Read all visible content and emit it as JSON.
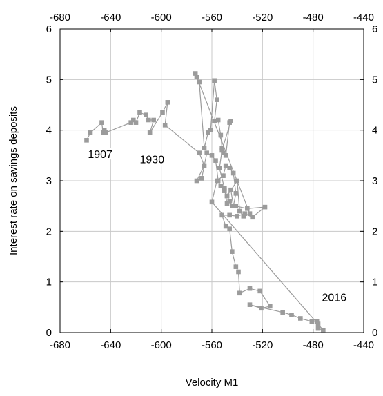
{
  "chart_data": {
    "type": "scatter",
    "title": "",
    "xlabel": "Velocity M1",
    "ylabel": "Interest rate on savings deposits",
    "xlim": [
      -680,
      -440
    ],
    "ylim": [
      0,
      6
    ],
    "x_ticks": [
      "-680",
      "-640",
      "-600",
      "-560",
      "-520",
      "-480",
      "-440"
    ],
    "y_ticks": [
      "0",
      "1",
      "2",
      "3",
      "4",
      "5",
      "6"
    ],
    "grid": true,
    "connected": true,
    "color": "#9b9b9b",
    "annotations": [
      {
        "text": "1907",
        "x": -658,
        "y": 3.45
      },
      {
        "text": "1930",
        "x": -617,
        "y": 3.35
      },
      {
        "text": "2016",
        "x": -473,
        "y": 0.62
      }
    ],
    "series": [
      {
        "values": [
          [
            -659,
            3.8
          ],
          [
            -656,
            3.95
          ],
          [
            -647,
            4.15
          ],
          [
            -646,
            3.95
          ],
          [
            -645,
            4.0
          ],
          [
            -644,
            3.95
          ],
          [
            -624,
            4.15
          ],
          [
            -622,
            4.2
          ],
          [
            -620,
            4.15
          ],
          [
            -617,
            4.35
          ],
          [
            -612,
            4.3
          ],
          [
            -610,
            4.2
          ],
          [
            -606,
            4.2
          ],
          [
            -609,
            3.95
          ],
          [
            -599,
            4.35
          ],
          [
            -595,
            4.55
          ],
          [
            -597,
            4.1
          ],
          [
            -570,
            3.55
          ],
          [
            -566,
            3.3
          ],
          [
            -572,
            3.0
          ],
          [
            -568,
            3.05
          ],
          [
            -564,
            3.55
          ],
          [
            -560,
            3.5
          ],
          [
            -557,
            3.4
          ],
          [
            -555,
            3.0
          ],
          [
            -553,
            2.9
          ],
          [
            -550,
            2.8
          ],
          [
            -548,
            2.7
          ],
          [
            -546,
            2.6
          ],
          [
            -544,
            2.5
          ],
          [
            -541,
            2.5
          ],
          [
            -532,
            2.45
          ],
          [
            -518,
            2.48
          ],
          [
            -528,
            2.28
          ],
          [
            -534,
            2.35
          ],
          [
            -540,
            2.3
          ],
          [
            -546,
            2.32
          ],
          [
            -552,
            2.32
          ],
          [
            -549,
            2.1
          ],
          [
            -546,
            2.05
          ],
          [
            -544,
            1.6
          ],
          [
            -541,
            1.3
          ],
          [
            -539,
            1.2
          ],
          [
            -538,
            0.78
          ],
          [
            -530,
            0.87
          ],
          [
            -522,
            0.82
          ],
          [
            -514,
            0.52
          ],
          [
            -521,
            0.48
          ],
          [
            -530,
            0.55
          ],
          [
            -504,
            0.4
          ],
          [
            -497,
            0.35
          ],
          [
            -490,
            0.28
          ],
          [
            -481,
            0.22
          ],
          [
            -477,
            0.22
          ],
          [
            -476,
            0.17
          ],
          [
            -476,
            0.08
          ],
          [
            -472,
            0.05
          ],
          [
            -560,
            2.58
          ],
          [
            -556,
            3.0
          ],
          [
            -551,
            3.1
          ],
          [
            -549,
            3.3
          ],
          [
            -546,
            3.25
          ],
          [
            -543,
            3.15
          ],
          [
            -541,
            2.75
          ],
          [
            -543,
            2.5
          ],
          [
            -545,
            2.82
          ],
          [
            -548,
            2.7
          ],
          [
            -540,
            3.0
          ],
          [
            -538,
            2.4
          ],
          [
            -535,
            2.3
          ],
          [
            -530,
            2.35
          ],
          [
            -573,
            5.12
          ],
          [
            -572,
            5.05
          ],
          [
            -570,
            4.95
          ],
          [
            -566,
            3.65
          ],
          [
            -563,
            3.95
          ],
          [
            -561,
            4.0
          ],
          [
            -558,
            4.98
          ],
          [
            -556,
            4.6
          ],
          [
            -558,
            4.18
          ],
          [
            -555,
            4.2
          ],
          [
            -553,
            3.9
          ],
          [
            -552,
            3.65
          ],
          [
            -551,
            3.55
          ],
          [
            -549,
            3.5
          ],
          [
            -546,
            4.15
          ],
          [
            -545,
            4.18
          ],
          [
            -552,
            3.6
          ],
          [
            -554,
            3.25
          ],
          [
            -550,
            2.85
          ],
          [
            -548,
            2.55
          ]
        ]
      }
    ]
  }
}
